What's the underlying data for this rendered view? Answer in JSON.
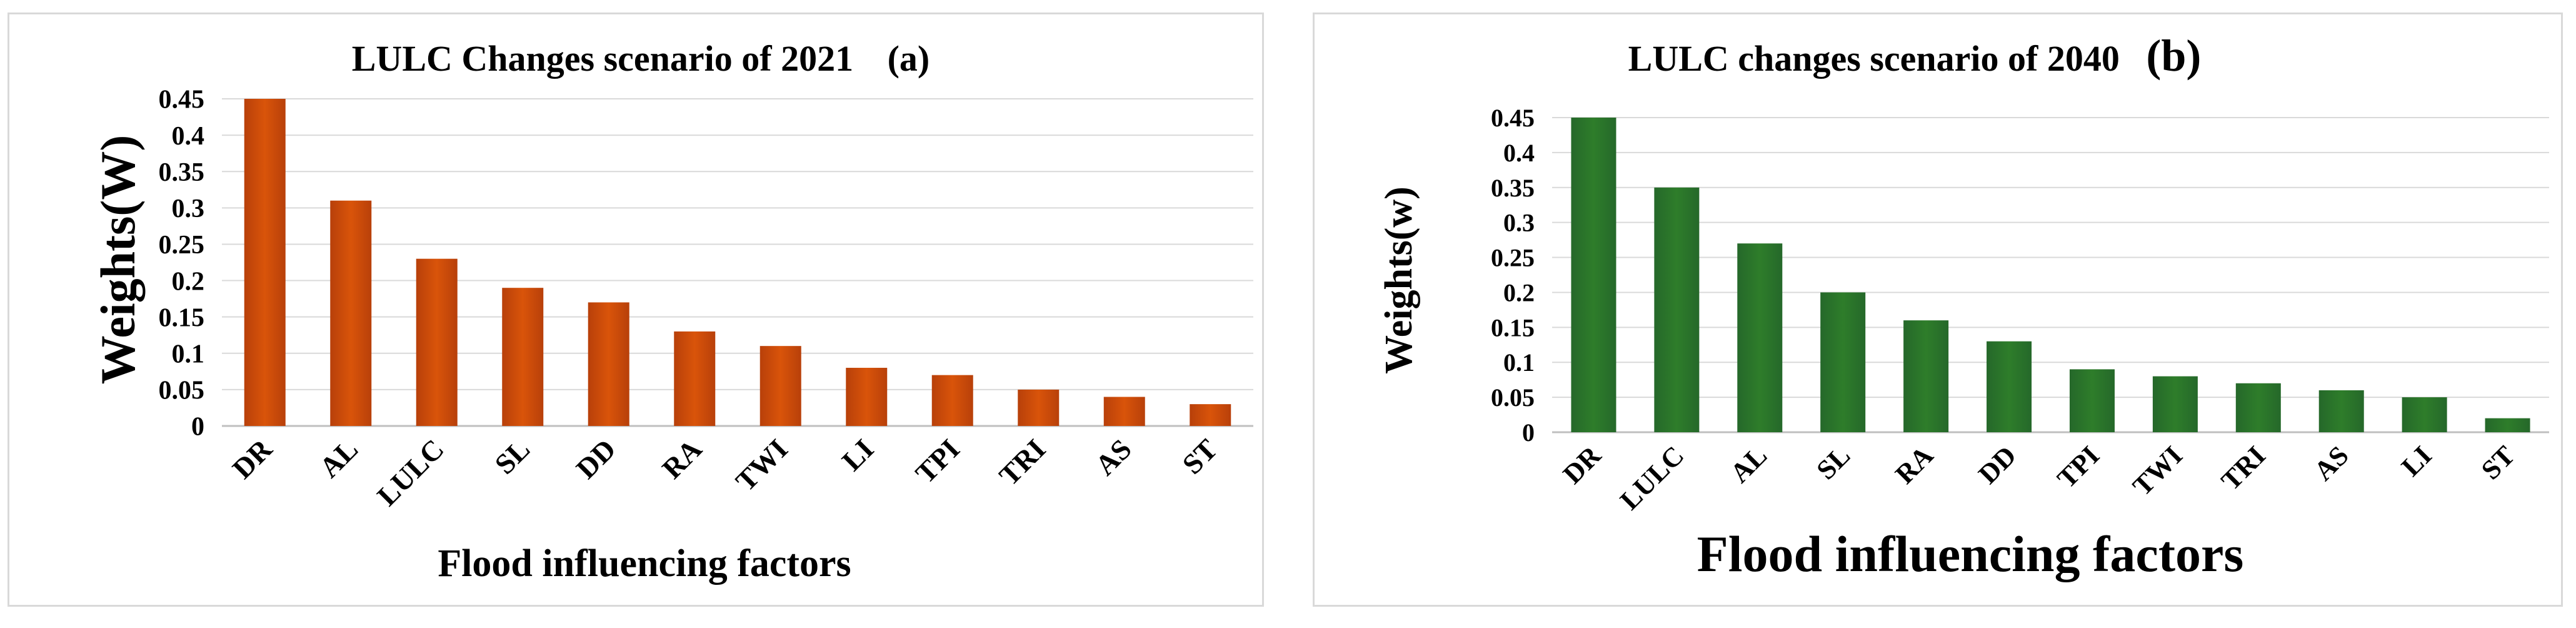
{
  "chart_data": [
    {
      "type": "bar",
      "title": "LULC Changes scenario of 2021",
      "panel_label": "(a)",
      "xlabel": "Flood influencing factors",
      "ylabel": "Weights(W)",
      "categories": [
        "DR",
        "AL",
        "LULC",
        "SL",
        "DD",
        "RA",
        "TWI",
        "LI",
        "TPI",
        "TRI",
        "AS",
        "ST"
      ],
      "values": [
        0.45,
        0.31,
        0.23,
        0.19,
        0.17,
        0.13,
        0.11,
        0.08,
        0.07,
        0.05,
        0.04,
        0.03
      ],
      "ylim": [
        0,
        0.45
      ],
      "yticks": [
        "0",
        "0.05",
        "0.1",
        "0.15",
        "0.2",
        "0.25",
        "0.3",
        "0.35",
        "0.4",
        "0.45"
      ],
      "grid": true,
      "color": "#d9540a"
    },
    {
      "type": "bar",
      "title": "LULC changes scenario of 2040",
      "panel_label": "(b)",
      "xlabel": "Flood influencing factors",
      "ylabel": "Weights(w)",
      "categories": [
        "DR",
        "LULC",
        "AL",
        "SL",
        "RA",
        "DD",
        "TPI",
        "TWI",
        "TRI",
        "AS",
        "LI",
        "ST"
      ],
      "values": [
        0.45,
        0.35,
        0.27,
        0.2,
        0.16,
        0.13,
        0.09,
        0.08,
        0.07,
        0.06,
        0.05,
        0.02
      ],
      "ylim": [
        0,
        0.45
      ],
      "yticks": [
        "0",
        "0.05",
        "0.1",
        "0.15",
        "0.2",
        "0.25",
        "0.3",
        "0.35",
        "0.4",
        "0.45"
      ],
      "grid": true,
      "color": "#2e7d2a"
    }
  ]
}
